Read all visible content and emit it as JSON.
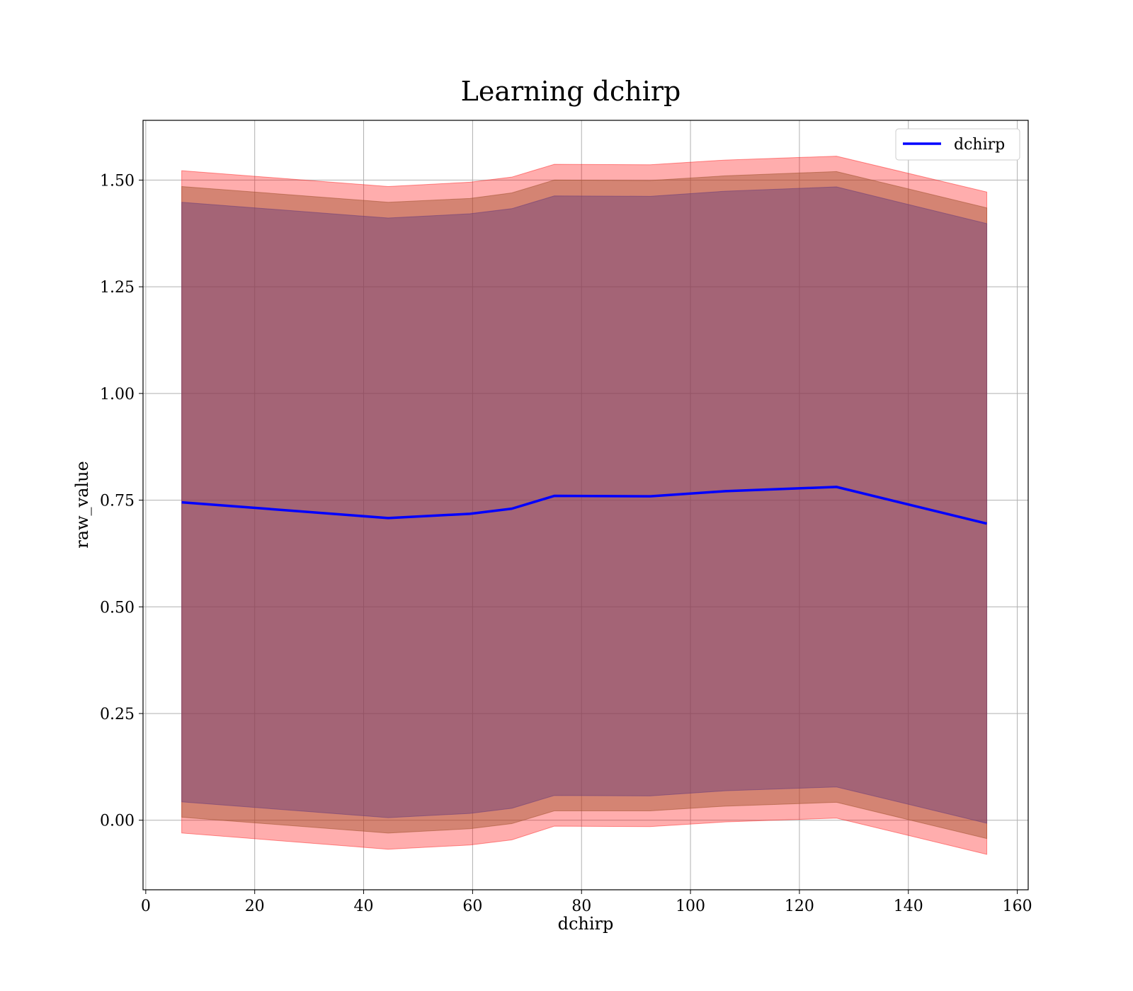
{
  "chart_data": {
    "type": "line",
    "title": "Learning dchirp",
    "xlabel": "dchirp",
    "ylabel": "raw_value",
    "xlim": [
      -0.5,
      162
    ],
    "ylim": [
      -0.163,
      1.64
    ],
    "xticks": [
      0,
      20,
      40,
      60,
      80,
      100,
      120,
      140,
      160
    ],
    "xtick_labels": [
      "0",
      "20",
      "40",
      "60",
      "80",
      "100",
      "120",
      "140",
      "160"
    ],
    "yticks": [
      0.0,
      0.25,
      0.5,
      0.75,
      1.0,
      1.25,
      1.5
    ],
    "ytick_labels": [
      "0.00",
      "0.25",
      "0.50",
      "0.75",
      "1.00",
      "1.25",
      "1.50"
    ],
    "grid": true,
    "legend_position": "top-right",
    "x": [
      6.6,
      44.5,
      59.5,
      67.2,
      75,
      92.6,
      106.4,
      126.8,
      154.4
    ],
    "series": [
      {
        "name": "dchirp",
        "color": "#0000ff",
        "values": [
          0.745,
          0.708,
          0.718,
          0.73,
          0.76,
          0.759,
          0.771,
          0.781,
          0.695
        ]
      }
    ],
    "bands": [
      {
        "color": "#ff0000",
        "opacity": 0.32,
        "lower": [
          -0.03,
          -0.068,
          -0.058,
          -0.046,
          -0.014,
          -0.015,
          -0.004,
          0.005,
          -0.08
        ],
        "upper": [
          1.522,
          1.485,
          1.495,
          1.507,
          1.537,
          1.536,
          1.547,
          1.556,
          1.472
        ]
      },
      {
        "color": "#a0522d",
        "opacity": 0.45,
        "lower": [
          0.007,
          -0.03,
          -0.02,
          -0.008,
          0.022,
          0.022,
          0.033,
          0.042,
          -0.043
        ],
        "upper": [
          1.485,
          1.448,
          1.457,
          1.47,
          1.5,
          1.499,
          1.51,
          1.52,
          1.435
        ]
      },
      {
        "color": "#6a3d7a",
        "opacity": 0.45,
        "lower": [
          0.043,
          0.006,
          0.016,
          0.028,
          0.058,
          0.057,
          0.069,
          0.078,
          -0.007
        ],
        "upper": [
          1.448,
          1.411,
          1.421,
          1.433,
          1.463,
          1.462,
          1.474,
          1.484,
          1.398
        ]
      }
    ]
  }
}
